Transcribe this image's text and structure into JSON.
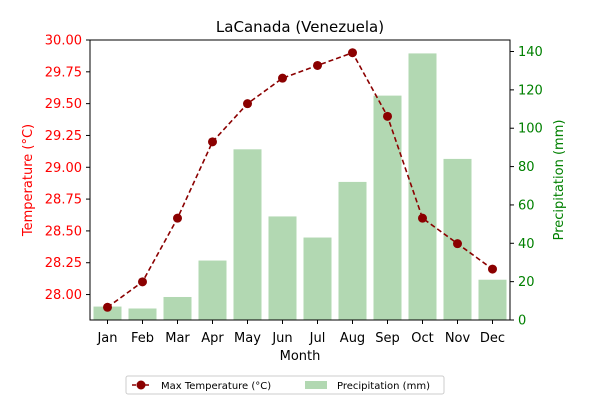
{
  "chart_data": {
    "type": "bar+line",
    "title": "LaCanada (Venezuela)",
    "xlabel": "Month",
    "ylabel_left": "Temperature (°C)",
    "ylabel_right": "Precipitation (mm)",
    "categories": [
      "Jan",
      "Feb",
      "Mar",
      "Apr",
      "May",
      "Jun",
      "Jul",
      "Aug",
      "Sep",
      "Oct",
      "Nov",
      "Dec"
    ],
    "left_axis": {
      "ylim": [
        27.8,
        30.0
      ],
      "ticks": [
        "28.00",
        "28.25",
        "28.50",
        "28.75",
        "29.00",
        "29.25",
        "29.50",
        "29.75",
        "30.00"
      ],
      "color": "#ff0000"
    },
    "right_axis": {
      "ylim": [
        0,
        146
      ],
      "ticks": [
        "0",
        "20",
        "40",
        "60",
        "80",
        "100",
        "120",
        "140"
      ],
      "color": "#008000"
    },
    "series": [
      {
        "name": "Max Temperature (°C)",
        "type": "line",
        "axis": "left",
        "color": "#8b0000",
        "style": "dashed",
        "marker": "circle",
        "values": [
          27.9,
          28.1,
          28.6,
          29.2,
          29.5,
          29.7,
          29.8,
          29.9,
          29.4,
          28.6,
          28.4,
          28.2
        ]
      },
      {
        "name": "Precipitation (mm)",
        "type": "bar",
        "axis": "right",
        "color": "#b2d8b2",
        "values": [
          7,
          6,
          12,
          31,
          89,
          54,
          43,
          72,
          117,
          139,
          84,
          21
        ]
      }
    ],
    "legend": {
      "placement": "bottom-center",
      "columns": 2
    },
    "grid": false
  }
}
